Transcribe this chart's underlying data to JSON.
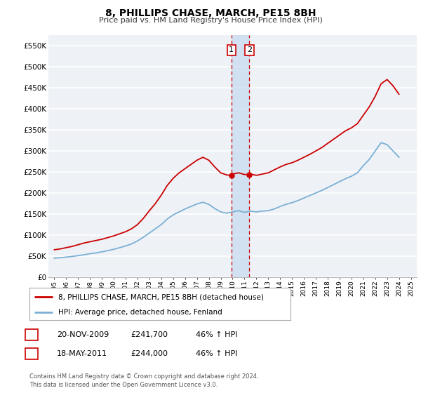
{
  "title": "8, PHILLIPS CHASE, MARCH, PE15 8BH",
  "subtitle": "Price paid vs. HM Land Registry's House Price Index (HPI)",
  "ylabel_ticks": [
    "£0",
    "£50K",
    "£100K",
    "£150K",
    "£200K",
    "£250K",
    "£300K",
    "£350K",
    "£400K",
    "£450K",
    "£500K",
    "£550K"
  ],
  "ytick_values": [
    0,
    50000,
    100000,
    150000,
    200000,
    250000,
    300000,
    350000,
    400000,
    450000,
    500000,
    550000
  ],
  "ylim": [
    0,
    575000
  ],
  "xlim_start": 1994.5,
  "xlim_end": 2025.5,
  "transaction1": {
    "label": "1",
    "date": "20-NOV-2009",
    "price": 241700,
    "pct": "46% ↑ HPI",
    "year": 2009.9
  },
  "transaction2": {
    "label": "2",
    "date": "18-MAY-2011",
    "price": 244000,
    "pct": "46% ↑ HPI",
    "year": 2011.4
  },
  "legend_line1": "8, PHILLIPS CHASE, MARCH, PE15 8BH (detached house)",
  "legend_line2": "HPI: Average price, detached house, Fenland",
  "footer": "Contains HM Land Registry data © Crown copyright and database right 2024.\nThis data is licensed under the Open Government Licence v3.0.",
  "red_color": "#cc0000",
  "blue_color": "#7bafd4",
  "background_color": "#eef2f7",
  "grid_color": "#ffffff",
  "vline_color": "#cc0000",
  "shade_color": "#ccddf0",
  "red_data": {
    "years": [
      1995.0,
      1995.5,
      1996.0,
      1996.5,
      1997.0,
      1997.5,
      1998.0,
      1998.5,
      1999.0,
      1999.5,
      2000.0,
      2000.5,
      2001.0,
      2001.5,
      2002.0,
      2002.5,
      2003.0,
      2003.5,
      2004.0,
      2004.5,
      2005.0,
      2005.5,
      2006.0,
      2006.5,
      2007.0,
      2007.5,
      2008.0,
      2008.5,
      2009.0,
      2009.5,
      2009.9,
      2010.0,
      2010.5,
      2011.0,
      2011.4,
      2011.5,
      2012.0,
      2012.5,
      2013.0,
      2013.5,
      2014.0,
      2014.5,
      2015.0,
      2015.5,
      2016.0,
      2016.5,
      2017.0,
      2017.5,
      2018.0,
      2018.5,
      2019.0,
      2019.5,
      2020.0,
      2020.5,
      2021.0,
      2021.5,
      2022.0,
      2022.5,
      2023.0,
      2023.5,
      2024.0
    ],
    "values": [
      65000,
      67000,
      70000,
      73000,
      77000,
      81000,
      84000,
      87000,
      90000,
      94000,
      98000,
      103000,
      108000,
      115000,
      125000,
      140000,
      158000,
      175000,
      195000,
      218000,
      235000,
      248000,
      258000,
      268000,
      278000,
      285000,
      278000,
      262000,
      248000,
      243000,
      241700,
      245000,
      248000,
      244000,
      244000,
      245000,
      242000,
      245000,
      248000,
      255000,
      262000,
      268000,
      272000,
      278000,
      285000,
      292000,
      300000,
      308000,
      318000,
      328000,
      338000,
      348000,
      355000,
      365000,
      385000,
      405000,
      430000,
      460000,
      470000,
      455000,
      435000
    ]
  },
  "blue_data": {
    "years": [
      1995.0,
      1995.5,
      1996.0,
      1996.5,
      1997.0,
      1997.5,
      1998.0,
      1998.5,
      1999.0,
      1999.5,
      2000.0,
      2000.5,
      2001.0,
      2001.5,
      2002.0,
      2002.5,
      2003.0,
      2003.5,
      2004.0,
      2004.5,
      2005.0,
      2005.5,
      2006.0,
      2006.5,
      2007.0,
      2007.5,
      2008.0,
      2008.5,
      2009.0,
      2009.5,
      2010.0,
      2010.5,
      2011.0,
      2011.5,
      2012.0,
      2012.5,
      2013.0,
      2013.5,
      2014.0,
      2014.5,
      2015.0,
      2015.5,
      2016.0,
      2016.5,
      2017.0,
      2017.5,
      2018.0,
      2018.5,
      2019.0,
      2019.5,
      2020.0,
      2020.5,
      2021.0,
      2021.5,
      2022.0,
      2022.5,
      2023.0,
      2023.5,
      2024.0
    ],
    "values": [
      45000,
      46000,
      47500,
      49000,
      51000,
      53000,
      55500,
      57500,
      60000,
      63000,
      66000,
      70000,
      74000,
      79000,
      86000,
      95000,
      105000,
      115000,
      125000,
      138000,
      148000,
      155000,
      162000,
      168000,
      174000,
      178000,
      173000,
      163000,
      155000,
      152000,
      155000,
      158000,
      154000,
      157000,
      155000,
      157000,
      158000,
      162000,
      168000,
      173000,
      177000,
      182000,
      188000,
      194000,
      200000,
      206000,
      213000,
      220000,
      227000,
      234000,
      240000,
      248000,
      265000,
      280000,
      300000,
      320000,
      315000,
      300000,
      285000
    ]
  }
}
